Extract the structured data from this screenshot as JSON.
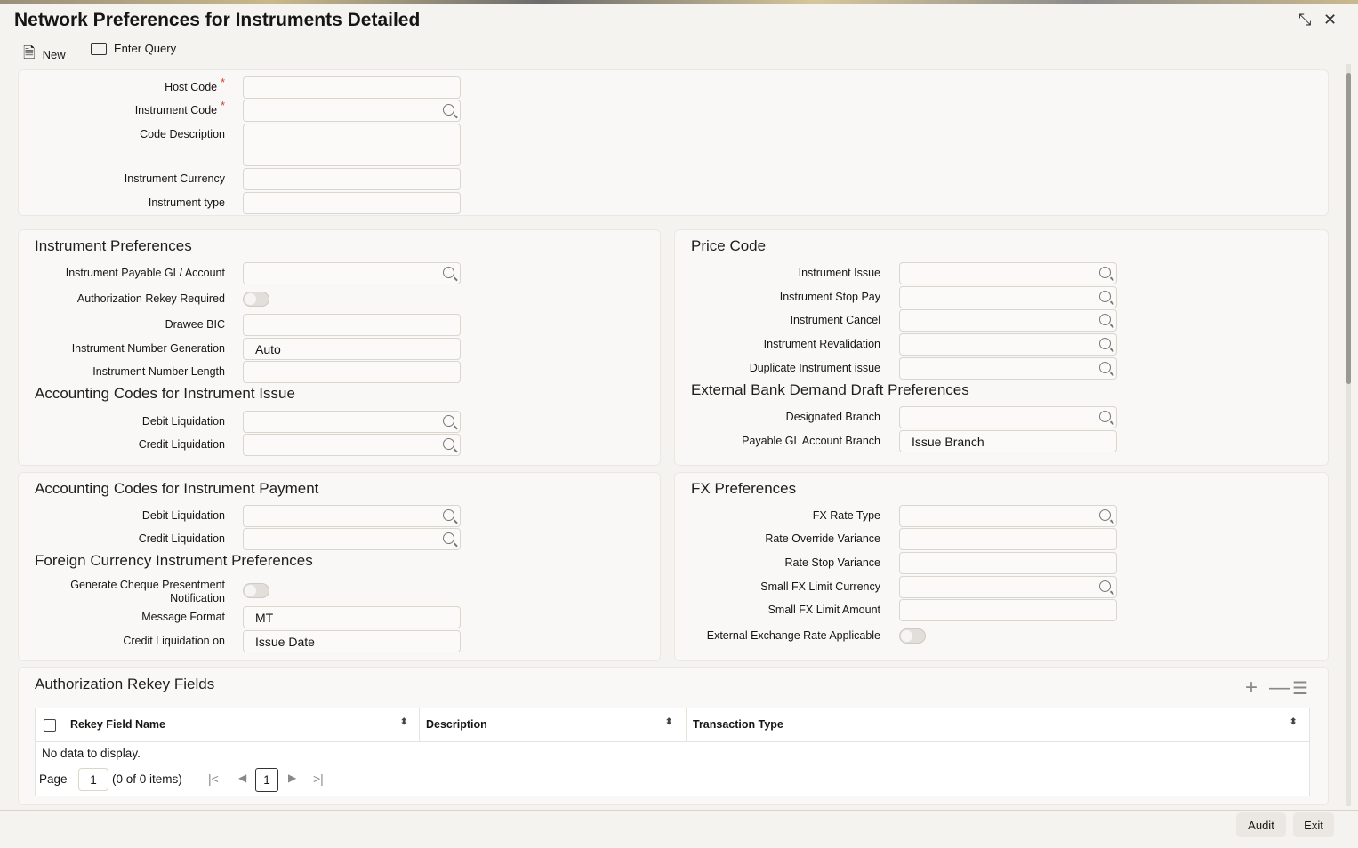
{
  "title": "Network Preferences for Instruments Detailed",
  "toolbar": {
    "new": "New",
    "enter_query": "Enter Query"
  },
  "header": {
    "host_code": "Host Code",
    "instrument_code": "Instrument Code",
    "code_description": "Code Description",
    "instrument_currency": "Instrument Currency",
    "instrument_type": "Instrument type",
    "required": "*"
  },
  "instrument_preferences": {
    "title": "Instrument Preferences",
    "payable_gl": "Instrument Payable GL/ Account",
    "auth_rekey": "Authorization Rekey Required",
    "drawee_bic": "Drawee BIC",
    "number_generation": "Instrument Number Generation",
    "number_generation_value": "Auto",
    "number_length": "Instrument Number Length"
  },
  "acc_issue": {
    "title": "Accounting Codes for Instrument Issue",
    "debit": "Debit Liquidation",
    "credit": "Credit Liquidation"
  },
  "price_code": {
    "title": "Price Code",
    "issue": "Instrument Issue",
    "stop_pay": "Instrument Stop Pay",
    "cancel": "Instrument Cancel",
    "revalidation": "Instrument Revalidation",
    "duplicate": "Duplicate Instrument issue"
  },
  "ext_bank": {
    "title": "External Bank Demand Draft Preferences",
    "designated_branch": "Designated Branch",
    "payable_gl_branch": "Payable GL Account Branch",
    "payable_gl_branch_value": "Issue Branch"
  },
  "acc_payment": {
    "title": "Accounting Codes for Instrument Payment",
    "debit": "Debit Liquidation",
    "credit": "Credit Liquidation"
  },
  "fc_pref": {
    "title": "Foreign Currency Instrument Preferences",
    "cheque_line1": "Generate Cheque Presentment",
    "cheque_line2": "Notification",
    "message_format": "Message Format",
    "message_format_value": "MT",
    "credit_liq_on": "Credit Liquidation on",
    "credit_liq_on_value": "Issue Date"
  },
  "fx": {
    "title": "FX Preferences",
    "rate_type": "FX Rate Type",
    "override_var": "Rate Override Variance",
    "stop_var": "Rate Stop Variance",
    "small_ccy": "Small FX Limit Currency",
    "small_amt": "Small FX Limit Amount",
    "ext_rate": "External Exchange Rate Applicable"
  },
  "rekey": {
    "title": "Authorization Rekey Fields",
    "columns": [
      "Rekey Field Name",
      "Description",
      "Transaction Type"
    ],
    "empty": "No data to display.",
    "page_label": "Page",
    "page_value": "1",
    "items": "(0 of 0 items)",
    "current_page": "1"
  },
  "footer": {
    "audit": "Audit",
    "exit": "Exit"
  }
}
